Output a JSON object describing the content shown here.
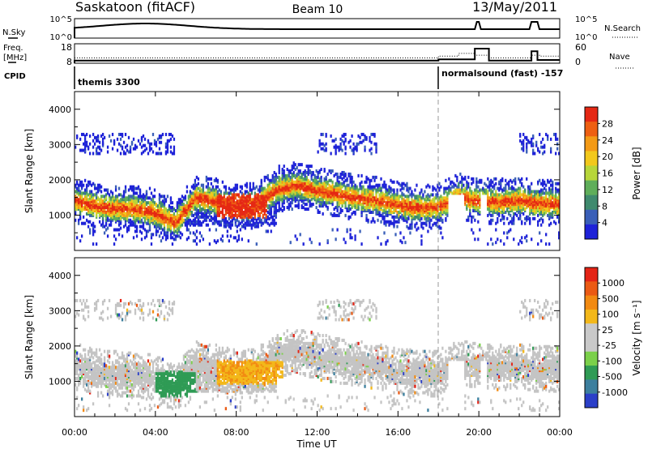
{
  "header": {
    "station": "Saskatoon (fitACF)",
    "beam": "Beam 10",
    "date": "13/May/2011"
  },
  "top_panels": {
    "nsky_label": "N.Sky",
    "nsky_ticks": [
      "10^5",
      "10^0"
    ],
    "nsearch_label": "N.Search",
    "nsearch_ticks": [
      "10^5",
      "10^0"
    ],
    "freq_label_1": "Freq.",
    "freq_label_2": "[MHz]",
    "freq_ticks": [
      "18",
      "8"
    ],
    "nave_label": "Nave",
    "nave_ticks": [
      "60",
      "0"
    ],
    "cpid_label": "CPID",
    "cpid_segments": [
      {
        "label": "themis 3300",
        "start_hour": 0
      },
      {
        "label": "normalsound (fast) -157",
        "start_hour": 18
      }
    ]
  },
  "chart_data": [
    {
      "type": "heatmap",
      "name": "power",
      "ylabel": "Slant Range [km]",
      "yticks": [
        1000,
        2000,
        3000,
        4000
      ],
      "ylim": [
        0,
        4500
      ],
      "xlim": [
        0,
        24
      ],
      "colorbar_label": "Power [dB]",
      "colorbar_ticks": [
        "28",
        "24",
        "20",
        "16",
        "12",
        "8",
        "4"
      ],
      "colorbar_colors": [
        "#1e22d8",
        "#3a5fb8",
        "#3f8a6e",
        "#5fae5a",
        "#b7d63a",
        "#f2c81c",
        "#f39a16",
        "#ee5f12",
        "#e52814"
      ],
      "ridge_range_km": [
        [
          0,
          1430
        ],
        [
          1,
          1260
        ],
        [
          2,
          1200
        ],
        [
          3,
          1170
        ],
        [
          4,
          1080
        ],
        [
          5,
          780
        ],
        [
          6,
          1500
        ],
        [
          7,
          1380
        ],
        [
          8,
          1230
        ],
        [
          9,
          1280
        ],
        [
          10,
          1720
        ],
        [
          11,
          1850
        ],
        [
          12,
          1700
        ],
        [
          13,
          1600
        ],
        [
          14,
          1480
        ],
        [
          15,
          1420
        ],
        [
          16,
          1280
        ],
        [
          17,
          1220
        ],
        [
          18,
          1240
        ],
        [
          19,
          1520
        ],
        [
          20,
          1400
        ],
        [
          21,
          1380
        ],
        [
          22,
          1420
        ],
        [
          23,
          1340
        ],
        [
          24,
          1330
        ]
      ]
    },
    {
      "type": "heatmap",
      "name": "velocity",
      "ylabel": "Slant Range [km]",
      "yticks": [
        1000,
        2000,
        3000,
        4000
      ],
      "ylim": [
        0,
        4500
      ],
      "xlim": [
        0,
        24
      ],
      "xlabel": "Time UT",
      "xticks": [
        "00:00",
        "04:00",
        "08:00",
        "12:00",
        "16:00",
        "20:00",
        "00:00"
      ],
      "colorbar_label": "Velocity [m s⁻¹]",
      "colorbar_ticks": [
        "1000",
        "500",
        "100",
        "25",
        "-25",
        "-100",
        "-500",
        "-1000"
      ],
      "colorbar_colors": [
        "#2b3fc8",
        "#3c7f9e",
        "#2f9b55",
        "#7bd04a",
        "#c9c9c9",
        "#c9c9c9",
        "#f3b81a",
        "#f28a12",
        "#eb5a14",
        "#e42416"
      ]
    }
  ],
  "colors": {
    "ground_scatter": "#c4c4c4",
    "axis": "#000000",
    "cpid_change_line": "#9a9a9a"
  }
}
